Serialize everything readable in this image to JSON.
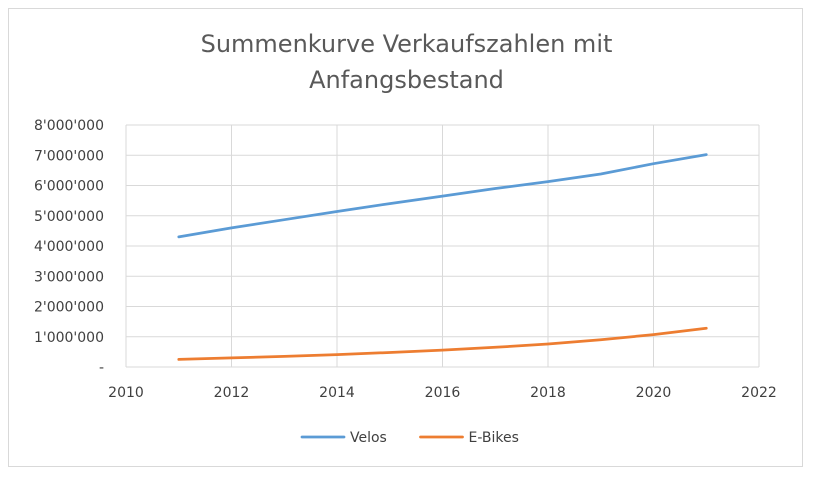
{
  "chart_data": {
    "type": "line",
    "title_lines": [
      "Summenkurve Verkaufszahlen mit",
      "Anfangsbestand"
    ],
    "xlabel": "",
    "ylabel": "",
    "xlim": [
      2010,
      2022
    ],
    "ylim": [
      0,
      8000000
    ],
    "x_ticks": [
      2010,
      2012,
      2014,
      2016,
      2018,
      2020,
      2022
    ],
    "x_tick_labels": [
      "2010",
      "2012",
      "2014",
      "2016",
      "2018",
      "2020",
      "2022"
    ],
    "y_ticks": [
      0,
      1000000,
      2000000,
      3000000,
      4000000,
      5000000,
      6000000,
      7000000,
      8000000
    ],
    "y_tick_labels": [
      "-",
      "1'000'000",
      "2'000'000",
      "3'000'000",
      "4'000'000",
      "5'000'000",
      "6'000'000",
      "7'000'000",
      "8'000'000"
    ],
    "grid": true,
    "legend_position": "bottom",
    "x": [
      2011,
      2012,
      2013,
      2014,
      2015,
      2016,
      2017,
      2018,
      2019,
      2020,
      2021
    ],
    "series": [
      {
        "name": "Velos",
        "color": "#5b9bd5",
        "values": [
          4300000,
          4600000,
          4870000,
          5140000,
          5400000,
          5650000,
          5900000,
          6130000,
          6380000,
          6720000,
          7020000
        ]
      },
      {
        "name": "E-Bikes",
        "color": "#ed7d31",
        "values": [
          250000,
          300000,
          350000,
          410000,
          480000,
          560000,
          650000,
          760000,
          900000,
          1070000,
          1280000
        ]
      }
    ]
  }
}
